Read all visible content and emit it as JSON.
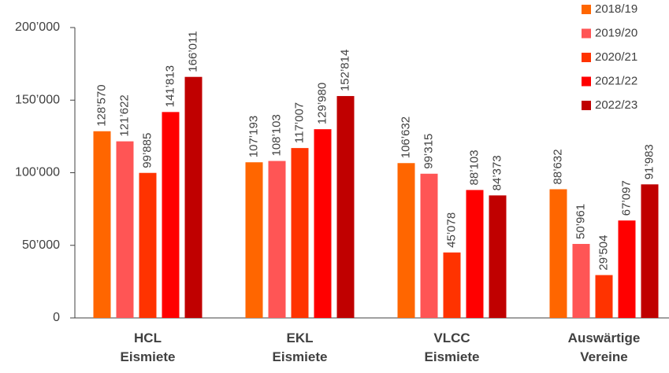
{
  "chart_data": {
    "type": "bar",
    "categories": [
      "HCL\nEismiete",
      "EKL\nEismiete",
      "VLCC\nEismiete",
      "Auswärtige\nVereine"
    ],
    "series": [
      {
        "name": "2018/19",
        "color": "#ff6600",
        "values": [
          128570,
          107193,
          106632,
          88632
        ],
        "value_labels": [
          "128’570",
          "107’193",
          "106’632",
          "88’632"
        ]
      },
      {
        "name": "2019/20",
        "color": "#ff5555",
        "values": [
          121622,
          108103,
          99315,
          50961
        ],
        "value_labels": [
          "121’622",
          "108’103",
          "99’315",
          "50’961"
        ]
      },
      {
        "name": "2020/21",
        "color": "#ff3300",
        "values": [
          99885,
          117007,
          45078,
          29504
        ],
        "value_labels": [
          "99’885",
          "117’007",
          "45’078",
          "29’504"
        ]
      },
      {
        "name": "2021/22",
        "color": "#ff0000",
        "values": [
          141813,
          129980,
          88103,
          67097
        ],
        "value_labels": [
          "141’813",
          "129’980",
          "88’103",
          "67’097"
        ]
      },
      {
        "name": "2022/23",
        "color": "#c00000",
        "values": [
          166011,
          152814,
          84373,
          91983
        ],
        "value_labels": [
          "166’011",
          "152’814",
          "84’373",
          "91’983"
        ]
      }
    ],
    "ylim": [
      0,
      200000
    ],
    "yticks": [
      0,
      {
        "value": 50000,
        "label": "50’000"
      },
      {
        "value": 100000,
        "label": "100’000"
      },
      {
        "value": 150000,
        "label": "150’000"
      },
      {
        "value": 200000,
        "label": "200’000"
      }
    ],
    "legend": "top-right"
  }
}
